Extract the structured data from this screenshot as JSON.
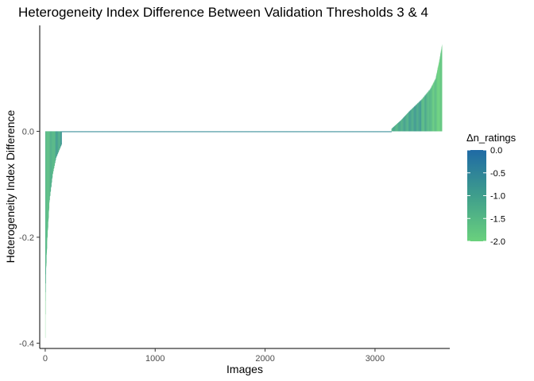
{
  "chart_data": {
    "type": "bar",
    "title": "Heterogeneity Index Difference Between Validation Thresholds 3 & 4",
    "xlabel": "Images",
    "ylabel": "Heterogeneity Index Difference",
    "xlim": [
      -50,
      3680
    ],
    "ylim": [
      -0.41,
      0.2
    ],
    "x_ticks": [
      0,
      1000,
      2000,
      3000
    ],
    "x_tick_labels": [
      "0",
      "1000",
      "2000",
      "3000"
    ],
    "y_ticks": [
      -0.4,
      -0.2,
      0.0
    ],
    "y_tick_labels": [
      "-0.4",
      "-0.2",
      "0.0"
    ],
    "grid": false,
    "n_images": 3610,
    "color_scale": {
      "title": "Δn_ratings",
      "min": -2.0,
      "max": 0.0,
      "color_at_max": "#1f6aa5",
      "color_at_mid": "#3f9e8c",
      "color_at_min": "#6ad17d",
      "tick_values": [
        0.0,
        -0.5,
        -1.0,
        -1.5,
        -2.0
      ],
      "tick_labels": [
        "0.0",
        "-0.5",
        "-1.0",
        "-1.5",
        "-2.0"
      ],
      "legend_position": "right"
    },
    "segments": [
      {
        "x": [
          0,
          3
        ],
        "y": [
          -0.39,
          -0.33
        ],
        "delta_n": -2.0
      },
      {
        "x": [
          3,
          6
        ],
        "y": [
          -0.31,
          -0.27
        ],
        "delta_n": -1.2
      },
      {
        "x": [
          6,
          20
        ],
        "y": [
          -0.27,
          -0.2
        ],
        "delta_n": -1.7
      },
      {
        "x": [
          20,
          40
        ],
        "y": [
          -0.2,
          -0.13
        ],
        "delta_n": -1.4
      },
      {
        "x": [
          40,
          70
        ],
        "y": [
          -0.13,
          -0.08
        ],
        "delta_n": -1.5
      },
      {
        "x": [
          70,
          100
        ],
        "y": [
          -0.08,
          -0.05
        ],
        "delta_n": -1.3
      },
      {
        "x": [
          100,
          150
        ],
        "y": [
          -0.05,
          -0.025
        ],
        "delta_n": -1.1
      },
      {
        "x": [
          150,
          3150
        ],
        "y": [
          0.0,
          0.0
        ],
        "delta_n": -0.6
      },
      {
        "x": [
          3150,
          3230
        ],
        "y": [
          0.005,
          0.02
        ],
        "delta_n": -1.3
      },
      {
        "x": [
          3230,
          3320
        ],
        "y": [
          0.02,
          0.04
        ],
        "delta_n": -1.2
      },
      {
        "x": [
          3320,
          3420
        ],
        "y": [
          0.04,
          0.06
        ],
        "delta_n": -1.1
      },
      {
        "x": [
          3420,
          3500
        ],
        "y": [
          0.06,
          0.08
        ],
        "delta_n": -1.4
      },
      {
        "x": [
          3500,
          3550
        ],
        "y": [
          0.08,
          0.1
        ],
        "delta_n": -1.7
      },
      {
        "x": [
          3550,
          3580
        ],
        "y": [
          0.1,
          0.13
        ],
        "delta_n": -1.9
      },
      {
        "x": [
          3580,
          3610
        ],
        "y": [
          0.13,
          0.165
        ],
        "delta_n": -2.0
      }
    ]
  }
}
